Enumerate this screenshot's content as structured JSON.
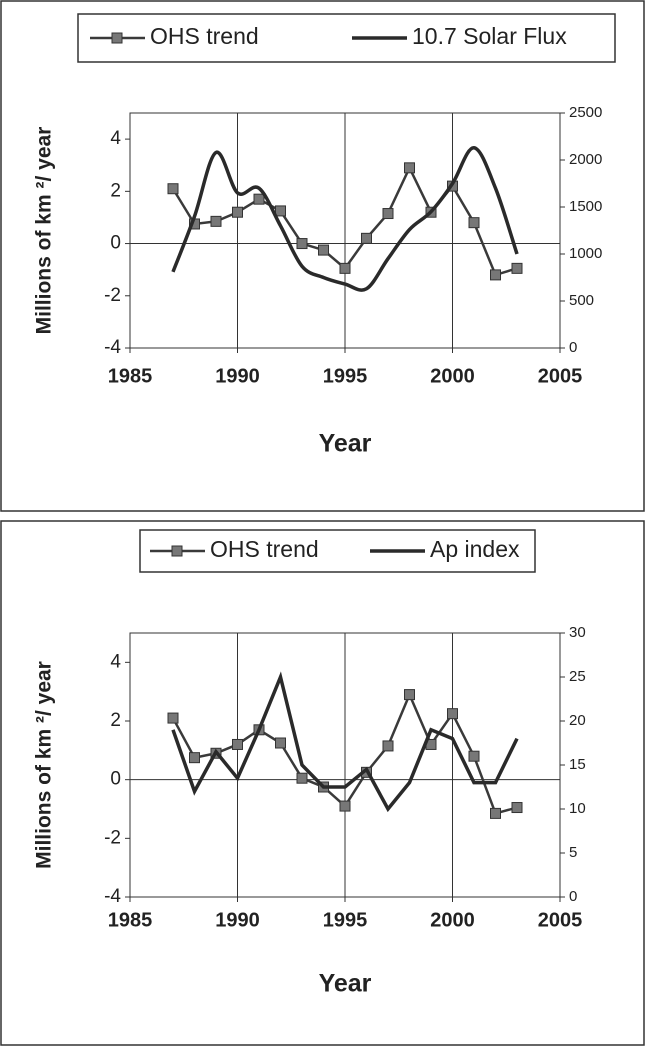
{
  "chart_data": [
    {
      "type": "line",
      "x": [
        1987,
        1988,
        1989,
        1990,
        1991,
        1992,
        1993,
        1994,
        1995,
        1996,
        1997,
        1998,
        1999,
        2000,
        2001,
        2002,
        2003
      ],
      "series": [
        {
          "name": "OHS trend",
          "color": "#3a3a3a",
          "marker": "square",
          "values": [
            2.1,
            0.75,
            0.85,
            1.2,
            1.7,
            1.25,
            0.0,
            -0.25,
            -0.95,
            0.2,
            1.15,
            2.9,
            1.2,
            2.2,
            0.8,
            -1.2,
            -0.95
          ]
        },
        {
          "name": "10.7 Solar Flux",
          "color": "#2a2a2a",
          "axis": "y2",
          "smooth": true,
          "values": [
            810,
            1400,
            2080,
            1650,
            1700,
            1300,
            870,
            750,
            680,
            630,
            950,
            1260,
            1450,
            1750,
            2130,
            1700,
            1000
          ]
        }
      ],
      "xlabel": "Year",
      "ylabel": "Millions of km ²/ year",
      "xlim": [
        1985,
        2005
      ],
      "xticks": [
        1985,
        1990,
        1995,
        2000,
        2005
      ],
      "ylim": [
        -4,
        5
      ],
      "yticks": [
        -4,
        -2,
        0,
        2,
        4
      ],
      "y2lim": [
        0,
        2500
      ],
      "y2ticks": [
        0,
        500,
        1000,
        1500,
        2000,
        2500
      ],
      "xgrid": true,
      "legend": "top"
    },
    {
      "type": "line",
      "x": [
        1987,
        1988,
        1989,
        1990,
        1991,
        1992,
        1993,
        1994,
        1995,
        1996,
        1997,
        1998,
        1999,
        2000,
        2001,
        2002,
        2003
      ],
      "series": [
        {
          "name": "OHS trend",
          "color": "#3a3a3a",
          "marker": "square",
          "values": [
            2.1,
            0.75,
            0.9,
            1.2,
            1.7,
            1.25,
            0.05,
            -0.25,
            -0.9,
            0.25,
            1.15,
            2.9,
            1.2,
            2.25,
            0.8,
            -1.15,
            -0.95
          ]
        },
        {
          "name": "Ap index",
          "color": "#2a2a2a",
          "axis": "y2",
          "values": [
            19,
            12,
            16.5,
            13.5,
            19,
            25,
            15,
            12.5,
            12.5,
            14.5,
            10,
            13,
            19,
            18,
            13,
            13,
            18
          ]
        }
      ],
      "xlabel": "Year",
      "ylabel": "Millions of km ²/ year",
      "xlim": [
        1985,
        2005
      ],
      "xticks": [
        1985,
        1990,
        1995,
        2000,
        2005
      ],
      "ylim": [
        -4,
        5
      ],
      "yticks": [
        -4,
        -2,
        0,
        2,
        4
      ],
      "y2lim": [
        0,
        30
      ],
      "y2ticks": [
        0,
        5,
        10,
        15,
        20,
        25,
        30
      ],
      "xgrid": true,
      "legend": "top"
    }
  ]
}
